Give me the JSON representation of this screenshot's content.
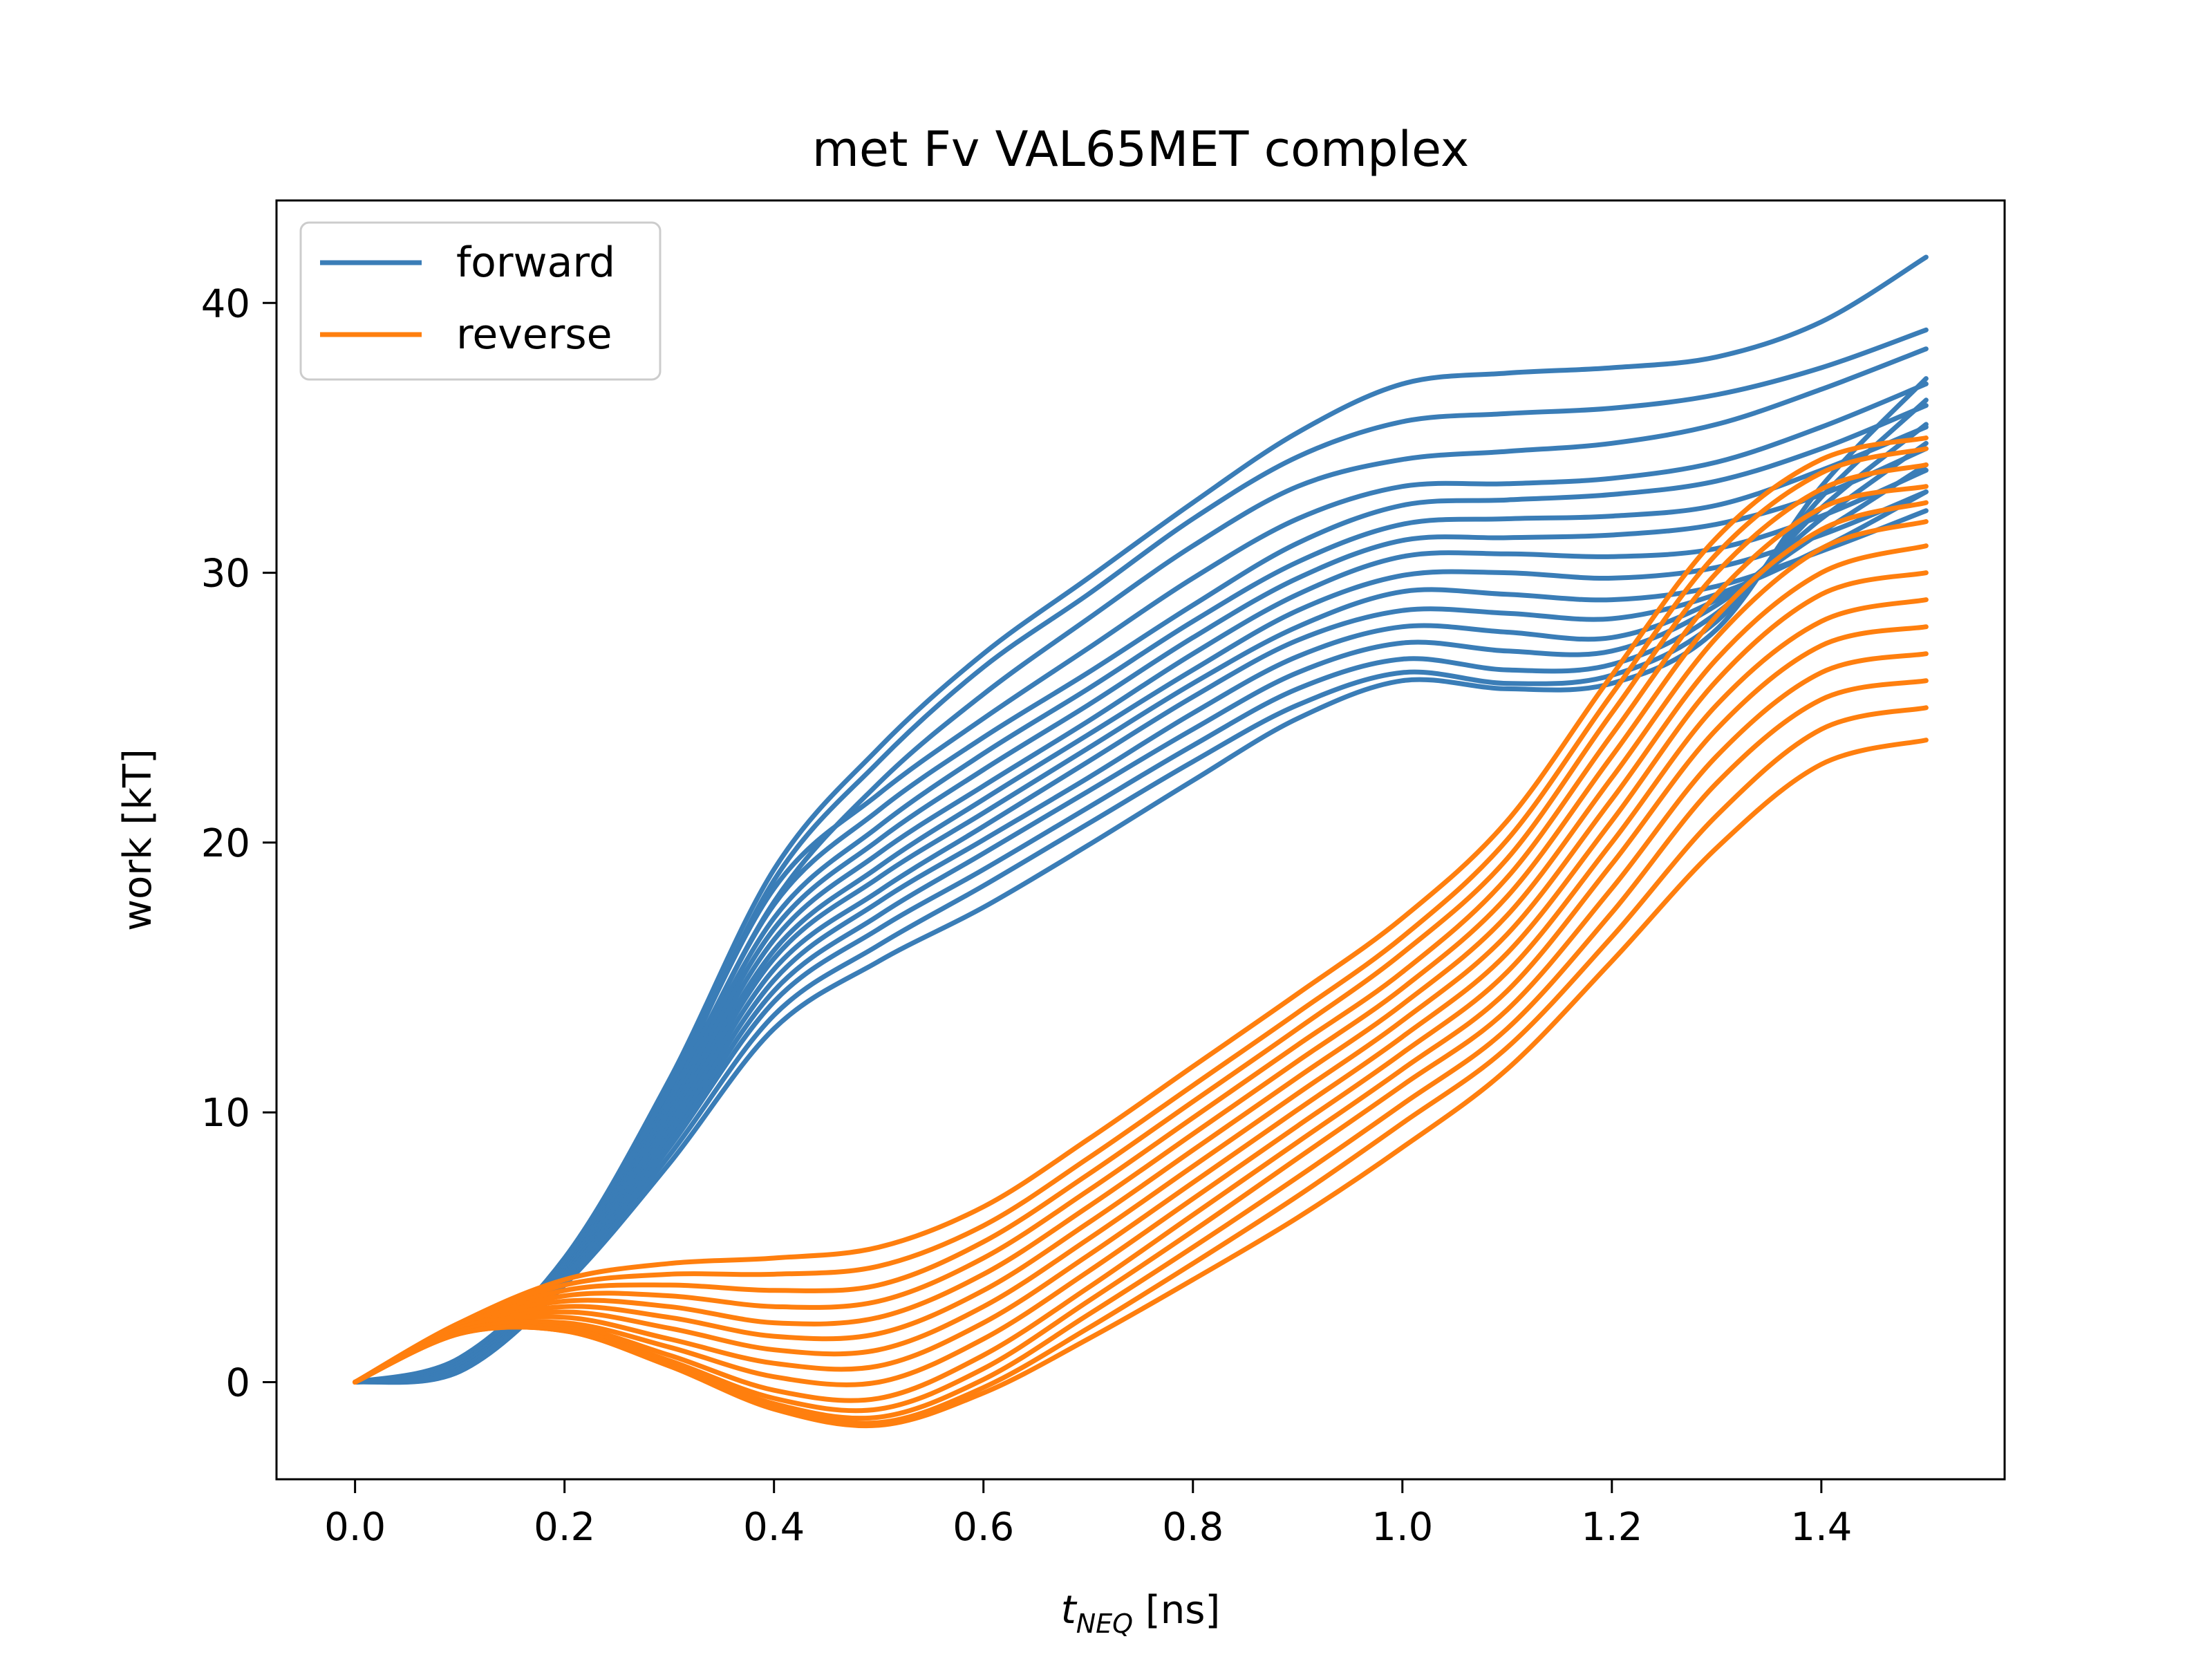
{
  "chart_data": {
    "type": "line",
    "title": "met Fv VAL65MET complex",
    "xlabel": {
      "main": "t",
      "sub": "NEQ",
      "unit": " [ns]"
    },
    "ylabel": "work [kT]",
    "xlim": [
      -0.075,
      1.575
    ],
    "ylim": [
      -3.6,
      43.8
    ],
    "x_ticks": [
      0.0,
      0.2,
      0.4,
      0.6,
      0.8,
      1.0,
      1.2,
      1.4
    ],
    "x_tick_labels": [
      "0.0",
      "0.2",
      "0.4",
      "0.6",
      "0.8",
      "1.0",
      "1.2",
      "1.4"
    ],
    "y_ticks": [
      0,
      10,
      20,
      30,
      40
    ],
    "y_tick_labels": [
      "0",
      "10",
      "20",
      "30",
      "40"
    ],
    "grid": false,
    "legend_position": "top-left",
    "x": [
      0.0,
      0.1,
      0.2,
      0.3,
      0.4,
      0.5,
      0.6,
      0.7,
      0.8,
      0.9,
      1.0,
      1.1,
      1.2,
      1.3,
      1.4,
      1.5
    ],
    "series": [
      {
        "name": "forward",
        "color": "#3a7db7",
        "curves": [
          [
            0.0,
            0.9,
            4.6,
            11.2,
            19.0,
            23.5,
            27.0,
            29.8,
            32.6,
            35.2,
            37.0,
            37.4,
            37.6,
            38.0,
            39.3,
            41.7
          ],
          [
            0.0,
            0.8,
            4.5,
            10.8,
            18.6,
            23.0,
            26.5,
            29.2,
            32.0,
            34.3,
            35.6,
            35.9,
            36.1,
            36.6,
            37.6,
            39.0
          ],
          [
            0.0,
            0.8,
            4.4,
            10.6,
            17.8,
            22.2,
            25.5,
            28.3,
            31.0,
            33.2,
            34.2,
            34.5,
            34.8,
            35.5,
            36.8,
            38.3
          ],
          [
            0.0,
            0.7,
            4.4,
            10.9,
            18.3,
            21.8,
            24.6,
            27.2,
            29.8,
            32.0,
            33.2,
            33.3,
            33.5,
            34.1,
            35.4,
            37.0
          ],
          [
            0.0,
            0.7,
            4.3,
            10.5,
            17.7,
            21.2,
            23.9,
            26.3,
            28.8,
            31.1,
            32.5,
            32.7,
            32.9,
            33.4,
            34.6,
            36.2
          ],
          [
            0.0,
            0.7,
            4.2,
            10.3,
            17.2,
            20.6,
            23.3,
            25.7,
            28.2,
            30.4,
            31.8,
            32.0,
            32.1,
            32.5,
            33.8,
            35.4
          ],
          [
            0.0,
            0.7,
            4.2,
            10.1,
            16.8,
            20.1,
            22.7,
            25.1,
            27.6,
            29.8,
            31.2,
            31.3,
            31.4,
            31.8,
            32.9,
            34.6
          ],
          [
            0.0,
            0.6,
            4.1,
            9.9,
            16.4,
            19.6,
            22.1,
            24.5,
            27.0,
            29.2,
            30.6,
            30.7,
            30.6,
            30.9,
            32.1,
            33.8
          ],
          [
            0.0,
            0.6,
            4.1,
            9.7,
            16.0,
            19.1,
            21.6,
            24.0,
            26.4,
            28.6,
            29.9,
            30.0,
            29.8,
            30.2,
            31.4,
            33.0
          ],
          [
            0.0,
            0.6,
            4.0,
            9.5,
            15.7,
            18.7,
            21.1,
            23.5,
            25.9,
            28.0,
            29.3,
            29.2,
            29.0,
            29.5,
            30.8,
            32.3
          ],
          [
            0.0,
            0.6,
            4.0,
            9.3,
            15.3,
            18.2,
            20.6,
            23.0,
            25.4,
            27.5,
            28.6,
            28.5,
            28.3,
            29.2,
            30.9,
            33.0
          ],
          [
            0.0,
            0.5,
            3.9,
            9.1,
            14.9,
            17.8,
            20.1,
            22.4,
            24.8,
            26.9,
            28.0,
            27.8,
            27.6,
            29.0,
            31.5,
            34.0
          ],
          [
            0.0,
            0.5,
            3.9,
            8.9,
            14.5,
            17.3,
            19.6,
            21.9,
            24.2,
            26.3,
            27.4,
            27.1,
            27.1,
            28.8,
            32.0,
            34.8
          ],
          [
            0.0,
            0.5,
            3.8,
            8.7,
            14.1,
            16.8,
            19.0,
            21.3,
            23.6,
            25.7,
            26.8,
            26.4,
            26.6,
            28.5,
            32.4,
            35.5
          ],
          [
            0.0,
            0.4,
            3.7,
            8.4,
            13.6,
            16.2,
            18.4,
            20.7,
            23.0,
            25.1,
            26.3,
            25.9,
            26.2,
            28.2,
            32.8,
            36.4
          ],
          [
            0.0,
            0.4,
            3.6,
            8.1,
            13.1,
            15.6,
            17.6,
            19.9,
            22.3,
            24.6,
            26.0,
            25.7,
            25.9,
            27.9,
            33.2,
            37.2
          ]
        ]
      },
      {
        "name": "reverse",
        "color": "#ff7f0e",
        "curves": [
          [
            0.0,
            2.2,
            3.8,
            4.4,
            4.6,
            5.0,
            6.5,
            9.0,
            11.7,
            14.4,
            17.2,
            20.8,
            26.2,
            31.3,
            34.2,
            35.0
          ],
          [
            0.0,
            2.2,
            3.6,
            4.0,
            4.0,
            4.3,
            5.8,
            8.3,
            11.0,
            13.7,
            16.5,
            20.1,
            25.5,
            30.7,
            33.7,
            34.6
          ],
          [
            0.0,
            2.1,
            3.4,
            3.6,
            3.4,
            3.6,
            5.2,
            7.7,
            10.4,
            13.1,
            15.9,
            19.4,
            24.8,
            30.0,
            33.1,
            34.0
          ],
          [
            0.0,
            2.1,
            3.2,
            3.2,
            2.8,
            3.0,
            4.6,
            7.1,
            9.8,
            12.5,
            15.2,
            18.7,
            24.0,
            29.2,
            32.4,
            33.2
          ],
          [
            0.0,
            2.1,
            3.0,
            2.8,
            2.2,
            2.4,
            4.0,
            6.5,
            9.2,
            11.9,
            14.6,
            18.0,
            23.2,
            28.4,
            31.6,
            32.6
          ],
          [
            0.0,
            2.0,
            2.8,
            2.4,
            1.7,
            1.8,
            3.4,
            5.9,
            8.6,
            11.3,
            14.0,
            17.3,
            22.4,
            27.6,
            30.9,
            31.9
          ],
          [
            0.0,
            2.0,
            2.6,
            2.0,
            1.2,
            1.2,
            2.8,
            5.3,
            8.0,
            10.7,
            13.4,
            16.6,
            21.6,
            26.8,
            30.0,
            31.0
          ],
          [
            0.0,
            2.0,
            2.4,
            1.6,
            0.7,
            0.6,
            2.2,
            4.7,
            7.4,
            10.1,
            12.8,
            15.9,
            20.8,
            26.0,
            29.2,
            30.0
          ],
          [
            0.0,
            1.9,
            2.2,
            1.3,
            0.2,
            0.0,
            1.6,
            4.1,
            6.8,
            9.5,
            12.2,
            15.2,
            20.0,
            25.1,
            28.2,
            29.0
          ],
          [
            0.0,
            1.9,
            2.1,
            1.0,
            -0.3,
            -0.6,
            1.0,
            3.5,
            6.2,
            8.9,
            11.6,
            14.5,
            19.2,
            24.2,
            27.3,
            28.0
          ],
          [
            0.0,
            1.9,
            2.0,
            0.8,
            -0.6,
            -1.0,
            0.5,
            3.0,
            5.6,
            8.3,
            11.0,
            13.8,
            18.3,
            23.2,
            26.3,
            27.0
          ],
          [
            0.0,
            1.8,
            2.0,
            0.7,
            -0.8,
            -1.3,
            0.1,
            2.5,
            5.0,
            7.6,
            10.3,
            13.1,
            17.4,
            22.2,
            25.3,
            26.0
          ],
          [
            0.0,
            1.8,
            1.9,
            0.6,
            -0.9,
            -1.5,
            -0.2,
            2.0,
            4.4,
            6.9,
            9.6,
            12.4,
            16.5,
            21.0,
            24.2,
            25.0
          ],
          [
            0.0,
            1.8,
            1.9,
            0.6,
            -1.0,
            -1.6,
            -0.4,
            1.6,
            3.8,
            6.1,
            8.7,
            11.6,
            15.6,
            19.8,
            22.9,
            23.8
          ]
        ]
      }
    ]
  }
}
